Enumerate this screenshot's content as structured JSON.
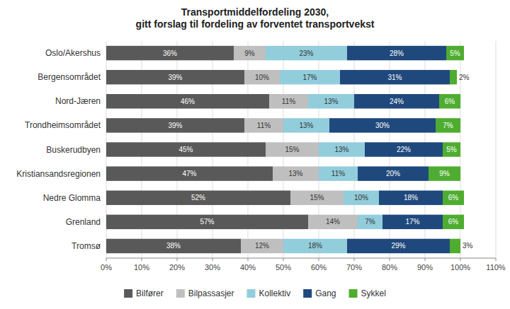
{
  "chart_data": {
    "type": "bar",
    "orientation": "horizontal",
    "stacked": true,
    "title": "Transportmiddelfordeling 2030,\ngitt forslag til fordeling av forventet transportvekst",
    "categories": [
      "Oslo/Akershus",
      "Bergensområdet",
      "Nord-Jæren",
      "Trondheimsområdet",
      "Buskerudbyen",
      "Kristiansandsregionen",
      "Nedre Glomma",
      "Grenland",
      "Tromsø"
    ],
    "series": [
      {
        "name": "Bilfører",
        "color": "#595959",
        "values": [
          36,
          39,
          46,
          39,
          45,
          47,
          52,
          57,
          38
        ],
        "value_labels": [
          "36%",
          "39%",
          "46%",
          "39%",
          "45%",
          "47%",
          "52%",
          "57%",
          "38%"
        ]
      },
      {
        "name": "Bilpassasjer",
        "color": "#bfbfbf",
        "values": [
          9,
          10,
          11,
          11,
          15,
          13,
          15,
          14,
          12
        ],
        "value_labels": [
          "9%",
          "10%",
          "11%",
          "11%",
          "15%",
          "13%",
          "15%",
          "14%",
          "12%"
        ]
      },
      {
        "name": "Kollektiv",
        "color": "#92cddc",
        "values": [
          23,
          17,
          13,
          13,
          13,
          11,
          10,
          7,
          18
        ],
        "value_labels": [
          "23%",
          "17%",
          "13%",
          "13%",
          "13%",
          "11%",
          "10%",
          "7%",
          "18%"
        ]
      },
      {
        "name": "Gang",
        "color": "#1f497d",
        "values": [
          28,
          31,
          24,
          30,
          22,
          20,
          18,
          17,
          29
        ],
        "value_labels": [
          "28%",
          "31%",
          "24%",
          "30%",
          "22%",
          "20%",
          "18%",
          "17%",
          "29%"
        ]
      },
      {
        "name": "Sykkel",
        "color": "#4ead30",
        "values": [
          5,
          2,
          6,
          7,
          5,
          9,
          6,
          6,
          3
        ],
        "value_labels": [
          "5%",
          "2%",
          "6%",
          "7%",
          "5%",
          "9%",
          "6%",
          "6%",
          "3%"
        ]
      }
    ],
    "xlim": [
      0,
      110
    ],
    "xticks": [
      {
        "value": 0,
        "label": "0%"
      },
      {
        "value": 10,
        "label": "10%"
      },
      {
        "value": 20,
        "label": "20%"
      },
      {
        "value": 30,
        "label": "30%"
      },
      {
        "value": 40,
        "label": "40%"
      },
      {
        "value": 50,
        "label": "50%"
      },
      {
        "value": 60,
        "label": "60%"
      },
      {
        "value": 70,
        "label": "70%"
      },
      {
        "value": 80,
        "label": "80%"
      },
      {
        "value": 90,
        "label": "90%"
      },
      {
        "value": 100,
        "label": "100%"
      },
      {
        "value": 110,
        "label": "110%"
      }
    ],
    "grid": true,
    "legend": "bottom",
    "data_labels": true
  }
}
